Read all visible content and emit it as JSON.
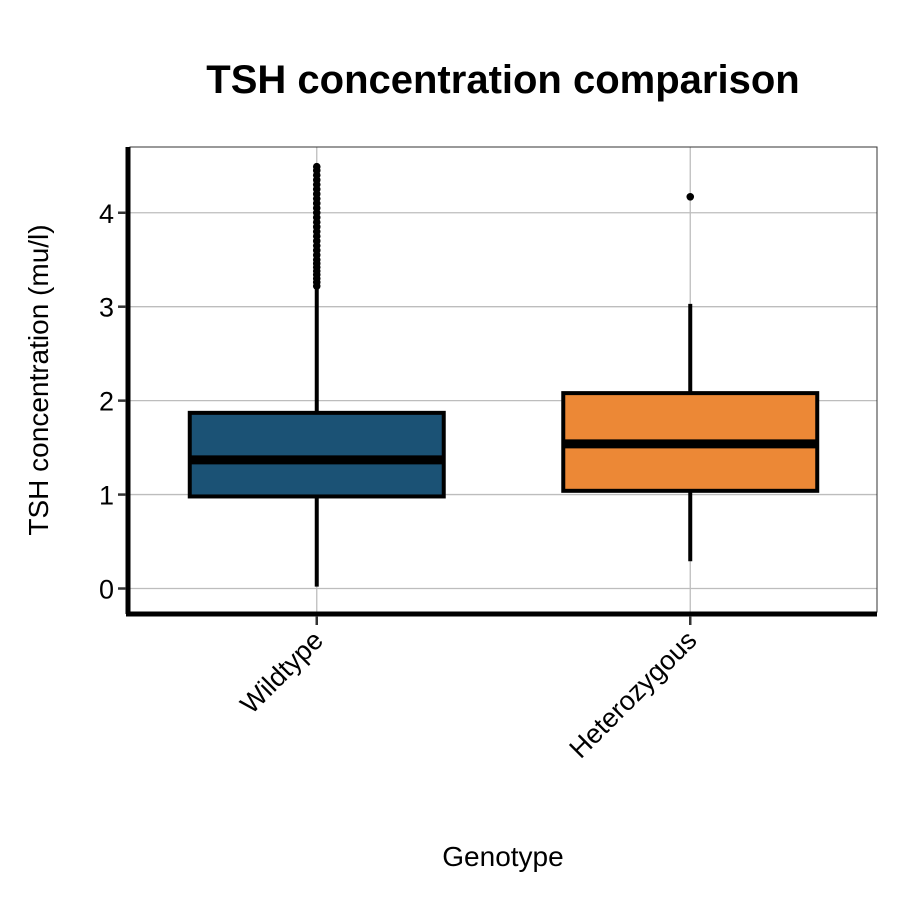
{
  "chart_data": {
    "type": "box",
    "title": "TSH concentration comparison",
    "xlabel": "Genotype",
    "ylabel": "TSH concentration (mu/l)",
    "ylim": [
      -0.25,
      4.7
    ],
    "yticks": [
      0,
      1,
      2,
      3,
      4
    ],
    "grid": true,
    "categories": [
      "Wildtype",
      "Heterozygous"
    ],
    "series": [
      {
        "category": "Wildtype",
        "color": "#1b5275",
        "whisker_low": 0.02,
        "q1": 0.98,
        "median": 1.37,
        "q3": 1.87,
        "whisker_high": 3.2,
        "outliers": [
          3.22,
          3.26,
          3.3,
          3.34,
          3.38,
          3.42,
          3.46,
          3.5,
          3.55,
          3.6,
          3.65,
          3.7,
          3.75,
          3.8,
          3.85,
          3.9,
          3.95,
          4.0,
          4.05,
          4.1,
          4.15,
          4.2,
          4.25,
          4.3,
          4.35,
          4.4,
          4.45,
          4.49
        ]
      },
      {
        "category": "Heterozygous",
        "color": "#ec8836",
        "whisker_low": 0.29,
        "q1": 1.04,
        "median": 1.54,
        "q3": 2.08,
        "whisker_high": 3.03,
        "outliers": [
          4.17
        ]
      }
    ]
  }
}
